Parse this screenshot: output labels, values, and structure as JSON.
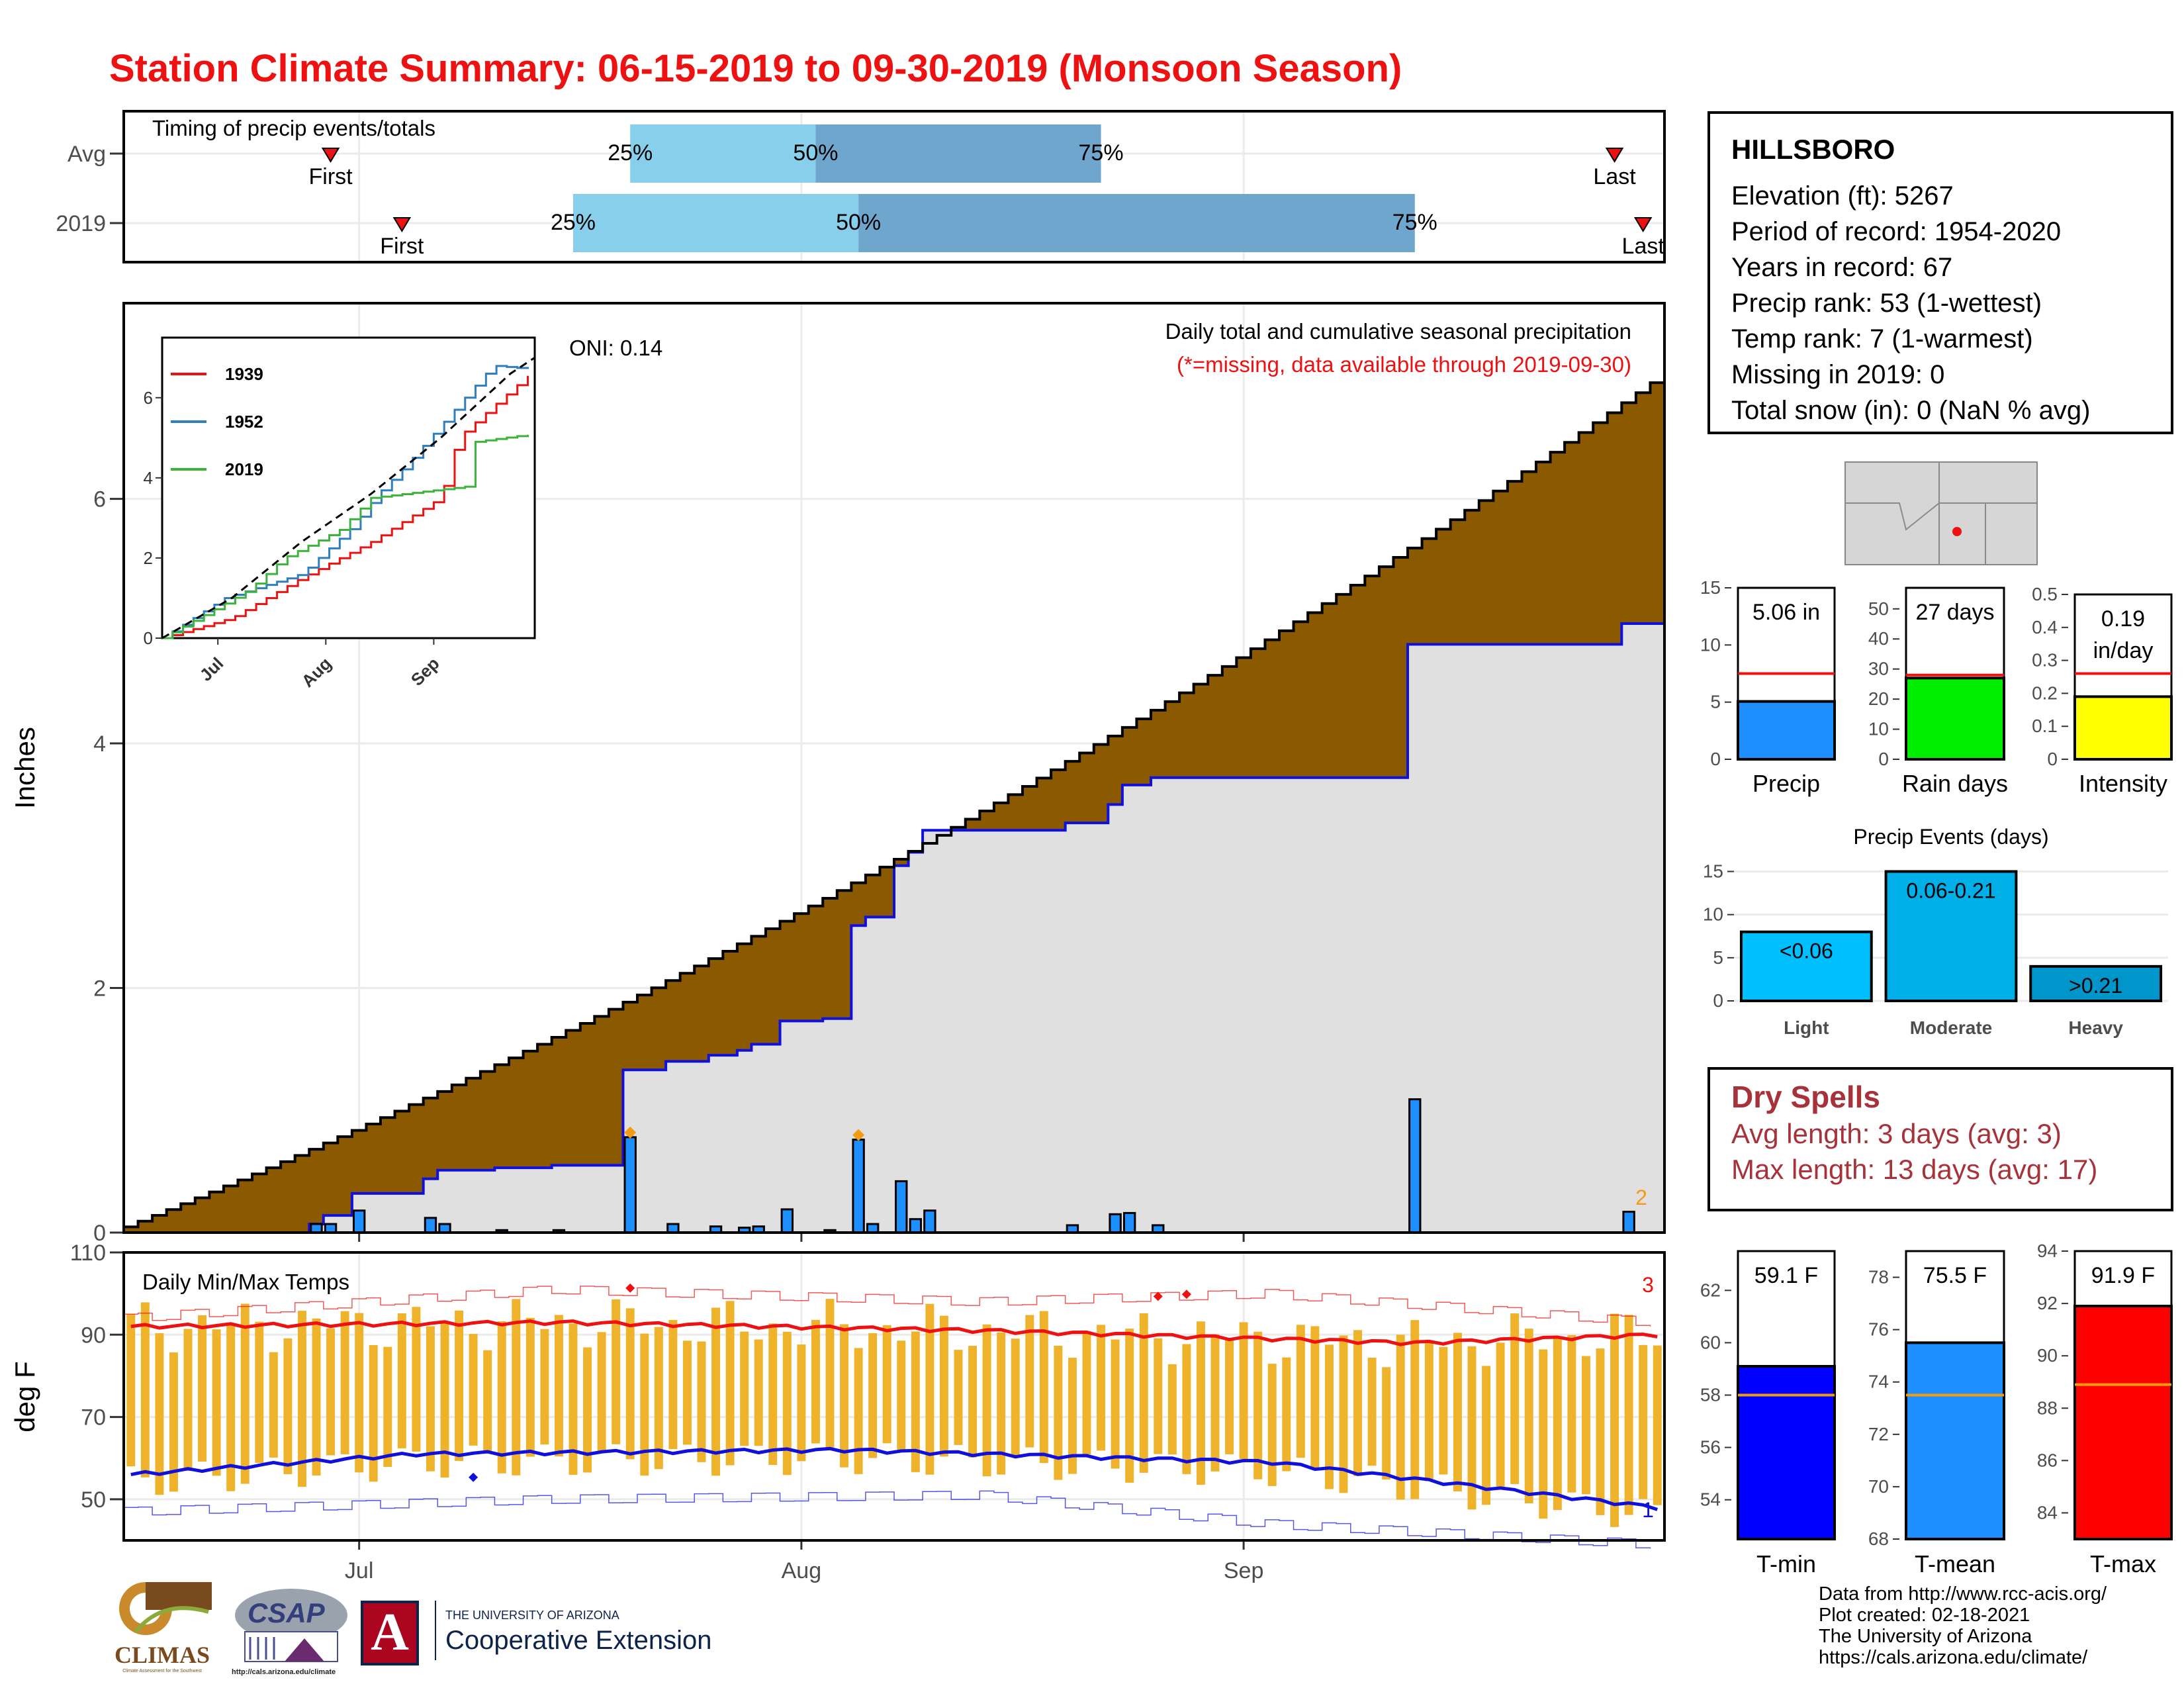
{
  "title": "Station Climate Summary: 06-15-2019 to 09-30-2019 (Monsoon Season)",
  "station": {
    "name": "HILLSBORO",
    "lines": [
      "Elevation (ft): 5267",
      "Period of record: 1954-2020",
      "Years in record: 67",
      "Precip rank: 53 (1-wettest)",
      "Temp rank: 7 (1-warmest)",
      "Missing in 2019: 0",
      "Total snow (in): 0 (NaN % avg)"
    ]
  },
  "dry_spells": {
    "heading": "Dry Spells",
    "avg_length": "Avg length: 3 days (avg: 3)",
    "max_length": "Max length: 13 days (avg: 17)"
  },
  "footer": [
    "Data from http://www.rcc-acis.org/",
    "Plot created: 02-18-2021",
    "The University of Arizona",
    "https://cals.arizona.edu/climate/"
  ],
  "logos": {
    "climas": "CLIMAS",
    "climas_sub": "Climate Assessment for the Southwest",
    "csap": "CSAP",
    "csap_url": "http://cals.arizona.edu/climate",
    "ua_small": "THE UNIVERSITY OF ARIZONA",
    "ua_big": "Cooperative Extension",
    "ua_letter": "A"
  },
  "colors": {
    "title": "#ee1111",
    "cumulative_fill": "#8b5a00",
    "current_fill": "#e0e0e0",
    "daily_bar": "#1e8fff",
    "temp_bar": "#efb22b",
    "max_line": "#ee1111",
    "min_line": "#1010dd",
    "timing_light": "#87cfea",
    "timing_dark": "#6ea6cd"
  },
  "chart_data": [
    {
      "id": "timing",
      "type": "bar",
      "title": "Timing of precip events/totals",
      "date_range": [
        "2019-06-15",
        "2019-09-30"
      ],
      "rows": [
        {
          "label": "Avg",
          "first": "2019-06-29",
          "q25": "2019-07-20",
          "q50": "2019-08-02",
          "q75": "2019-08-22",
          "last": "2019-09-27",
          "first_label": "First",
          "last_label": "Last"
        },
        {
          "label": "2019",
          "first": "2019-07-04",
          "q25": "2019-07-16",
          "q50": "2019-08-05",
          "q75": "2019-09-13",
          "last": "2019-09-29",
          "first_label": "First",
          "last_label": "Last"
        }
      ],
      "quantile_labels": [
        "25%",
        "50%",
        "75%"
      ]
    },
    {
      "id": "precip",
      "type": "area",
      "ylabel": "Inches",
      "ylim": [
        0,
        7.6
      ],
      "yticks": [
        0,
        2,
        4,
        6
      ],
      "xticks": [
        "Jul",
        "Aug",
        "Sep"
      ],
      "x_start": "2019-06-15",
      "annotation_title": "Daily total and cumulative seasonal precipitation",
      "annotation_missing": "(*=missing, data available through 2019-09-30)",
      "oni": "ONI: 0.14",
      "corner_value": "2",
      "avg_cumulative_total": 6.95,
      "cumulative_2019_total": 5.06,
      "daily_2019": [
        {
          "date": "2019-06-28",
          "value": 0.07
        },
        {
          "date": "2019-06-29",
          "value": 0.07
        },
        {
          "date": "2019-07-01",
          "value": 0.18
        },
        {
          "date": "2019-07-06",
          "value": 0.12
        },
        {
          "date": "2019-07-07",
          "value": 0.07
        },
        {
          "date": "2019-07-11",
          "value": 0.02
        },
        {
          "date": "2019-07-15",
          "value": 0.02
        },
        {
          "date": "2019-07-20",
          "value": 0.78
        },
        {
          "date": "2019-07-23",
          "value": 0.07
        },
        {
          "date": "2019-07-26",
          "value": 0.05
        },
        {
          "date": "2019-07-28",
          "value": 0.04
        },
        {
          "date": "2019-07-29",
          "value": 0.05
        },
        {
          "date": "2019-07-31",
          "value": 0.19
        },
        {
          "date": "2019-08-03",
          "value": 0.02
        },
        {
          "date": "2019-08-05",
          "value": 0.76
        },
        {
          "date": "2019-08-06",
          "value": 0.07
        },
        {
          "date": "2019-08-08",
          "value": 0.42
        },
        {
          "date": "2019-08-09",
          "value": 0.11
        },
        {
          "date": "2019-08-10",
          "value": 0.18
        },
        {
          "date": "2019-08-20",
          "value": 0.06
        },
        {
          "date": "2019-08-23",
          "value": 0.15
        },
        {
          "date": "2019-08-24",
          "value": 0.16
        },
        {
          "date": "2019-08-26",
          "value": 0.06
        },
        {
          "date": "2019-09-13",
          "value": 1.09
        },
        {
          "date": "2019-09-28",
          "value": 0.17
        }
      ],
      "inset": {
        "ylim": [
          0,
          7.5
        ],
        "yticks": [
          0,
          2,
          4,
          6
        ],
        "xticks": [
          "Jul",
          "Aug",
          "Sep"
        ],
        "series": [
          {
            "name": "1939",
            "color": "#ee1111",
            "points": [
              [
                0,
                0
              ],
              [
                20,
                0.5
              ],
              [
                40,
                1.5
              ],
              [
                60,
                2.4
              ],
              [
                80,
                3.5
              ],
              [
                85,
                5.0
              ],
              [
                107,
                6.7
              ]
            ]
          },
          {
            "name": "1952",
            "color": "#2f7fbf",
            "points": [
              [
                0,
                0
              ],
              [
                18,
                1.0
              ],
              [
                40,
                1.6
              ],
              [
                55,
                2.8
              ],
              [
                62,
                3.6
              ],
              [
                70,
                4.3
              ],
              [
                95,
                6.8
              ],
              [
                107,
                6.7
              ]
            ]
          },
          {
            "name": "2019",
            "color": "#3cb33c",
            "points": [
              [
                0,
                0
              ],
              [
                25,
                1.2
              ],
              [
                35,
                2.0
              ],
              [
                51,
                2.7
              ],
              [
                60,
                3.5
              ],
              [
                89,
                3.8
              ],
              [
                90,
                4.9
              ],
              [
                107,
                5.1
              ]
            ]
          }
        ],
        "avg_points": [
          [
            0,
            0
          ],
          [
            20,
            1.0
          ],
          [
            40,
            2.4
          ],
          [
            60,
            3.6
          ],
          [
            80,
            5.0
          ],
          [
            100,
            6.6
          ],
          [
            107,
            7.0
          ]
        ]
      }
    },
    {
      "id": "temps",
      "type": "bar",
      "title": "Daily Min/Max Temps",
      "ylabel": "deg F",
      "ylim": [
        40,
        110
      ],
      "yticks": [
        50,
        70,
        90,
        110
      ],
      "xticks": [
        "Jul",
        "Aug",
        "Sep"
      ],
      "record_high_count": "3",
      "record_low_count": "1",
      "avg_max": [
        [
          0,
          92
        ],
        [
          30,
          93
        ],
        [
          60,
          91
        ],
        [
          90,
          88
        ],
        [
          107,
          90
        ]
      ],
      "avg_min": [
        [
          0,
          56
        ],
        [
          20,
          61
        ],
        [
          50,
          62
        ],
        [
          80,
          59
        ],
        [
          107,
          48
        ]
      ],
      "record_max": [
        [
          0,
          94
        ],
        [
          30,
          101
        ],
        [
          60,
          98
        ],
        [
          80,
          100
        ],
        [
          107,
          93
        ]
      ],
      "record_min": [
        [
          0,
          47
        ],
        [
          30,
          50
        ],
        [
          60,
          51
        ],
        [
          80,
          44
        ],
        [
          107,
          39
        ]
      ]
    },
    {
      "id": "precip_total",
      "type": "bar",
      "label": "Precip",
      "value": 5.06,
      "value_text": "5.06 in",
      "avg": 7.5,
      "ylim": [
        0,
        15
      ],
      "yticks": [
        0,
        5,
        10,
        15
      ],
      "color": "#1e8fff"
    },
    {
      "id": "rain_days",
      "type": "bar",
      "label": "Rain days",
      "value": 27,
      "value_text": "27 days",
      "avg": 28,
      "ylim": [
        0,
        57
      ],
      "yticks": [
        0,
        10,
        20,
        30,
        40,
        50
      ],
      "color": "#00ee00"
    },
    {
      "id": "intensity",
      "type": "bar",
      "label": "Intensity",
      "value": 0.19,
      "value_text": "0.19",
      "value_text2": "in/day",
      "avg": 0.26,
      "ylim": [
        0,
        0.5
      ],
      "yticks": [
        0.0,
        0.1,
        0.2,
        0.3,
        0.4,
        0.5
      ],
      "color": "#ffff00"
    },
    {
      "id": "events",
      "type": "bar",
      "title": "Precip Events (days)",
      "categories": [
        "Light",
        "Moderate",
        "Heavy"
      ],
      "values": [
        8,
        15,
        4
      ],
      "bar_labels": [
        "<0.06",
        "0.06-0.21",
        ">0.21"
      ],
      "ylim": [
        0,
        15.5
      ],
      "yticks": [
        0,
        5,
        10,
        15
      ]
    },
    {
      "id": "tmin",
      "type": "bar",
      "label": "T-min",
      "value": 59.1,
      "value_text": "59.1 F",
      "avg": 58,
      "ylim": [
        52.5,
        63.5
      ],
      "yticks": [
        54,
        56,
        58,
        60,
        62
      ],
      "color": "#0000ff"
    },
    {
      "id": "tmean",
      "type": "bar",
      "label": "T-mean",
      "value": 75.5,
      "value_text": "75.5 F",
      "avg": 73.5,
      "ylim": [
        68,
        79
      ],
      "yticks": [
        68,
        70,
        72,
        74,
        76,
        78
      ],
      "color": "#1e8fff"
    },
    {
      "id": "tmax",
      "type": "bar",
      "label": "T-max",
      "value": 91.9,
      "value_text": "91.9 F",
      "avg": 88.9,
      "ylim": [
        83,
        94
      ],
      "yticks": [
        84,
        86,
        88,
        90,
        92,
        94
      ],
      "color": "#ff0000"
    }
  ]
}
